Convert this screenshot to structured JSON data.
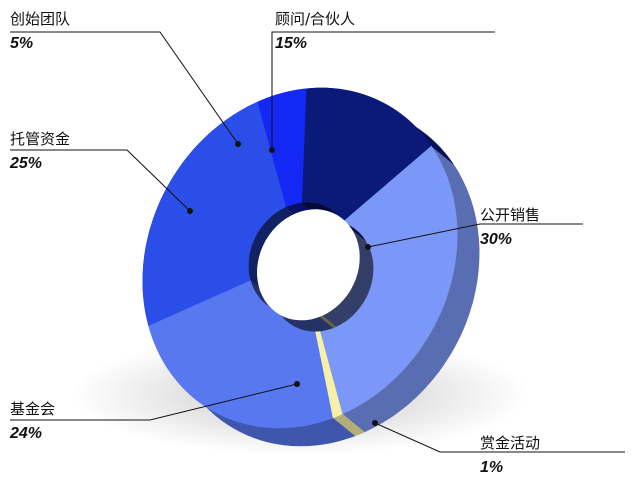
{
  "chart_data": {
    "type": "pie",
    "style": "3d-donut",
    "title": "",
    "legend": "none",
    "slices": [
      {
        "label": "公开销售",
        "value": 30,
        "value_label": "30%",
        "color": "#7b97f7"
      },
      {
        "label": "赏金活动",
        "value": 1,
        "value_label": "1%",
        "color": "#f7f0a8"
      },
      {
        "label": "基金会",
        "value": 24,
        "value_label": "24%",
        "color": "#5878f0"
      },
      {
        "label": "托管资金",
        "value": 25,
        "value_label": "25%",
        "color": "#2c4ee8"
      },
      {
        "label": "创始团队",
        "value": 5,
        "value_label": "5%",
        "color": "#1428f5"
      },
      {
        "label": "顾问/合伙人",
        "value": 15,
        "value_label": "15%",
        "color": "#0b1a78"
      }
    ]
  }
}
